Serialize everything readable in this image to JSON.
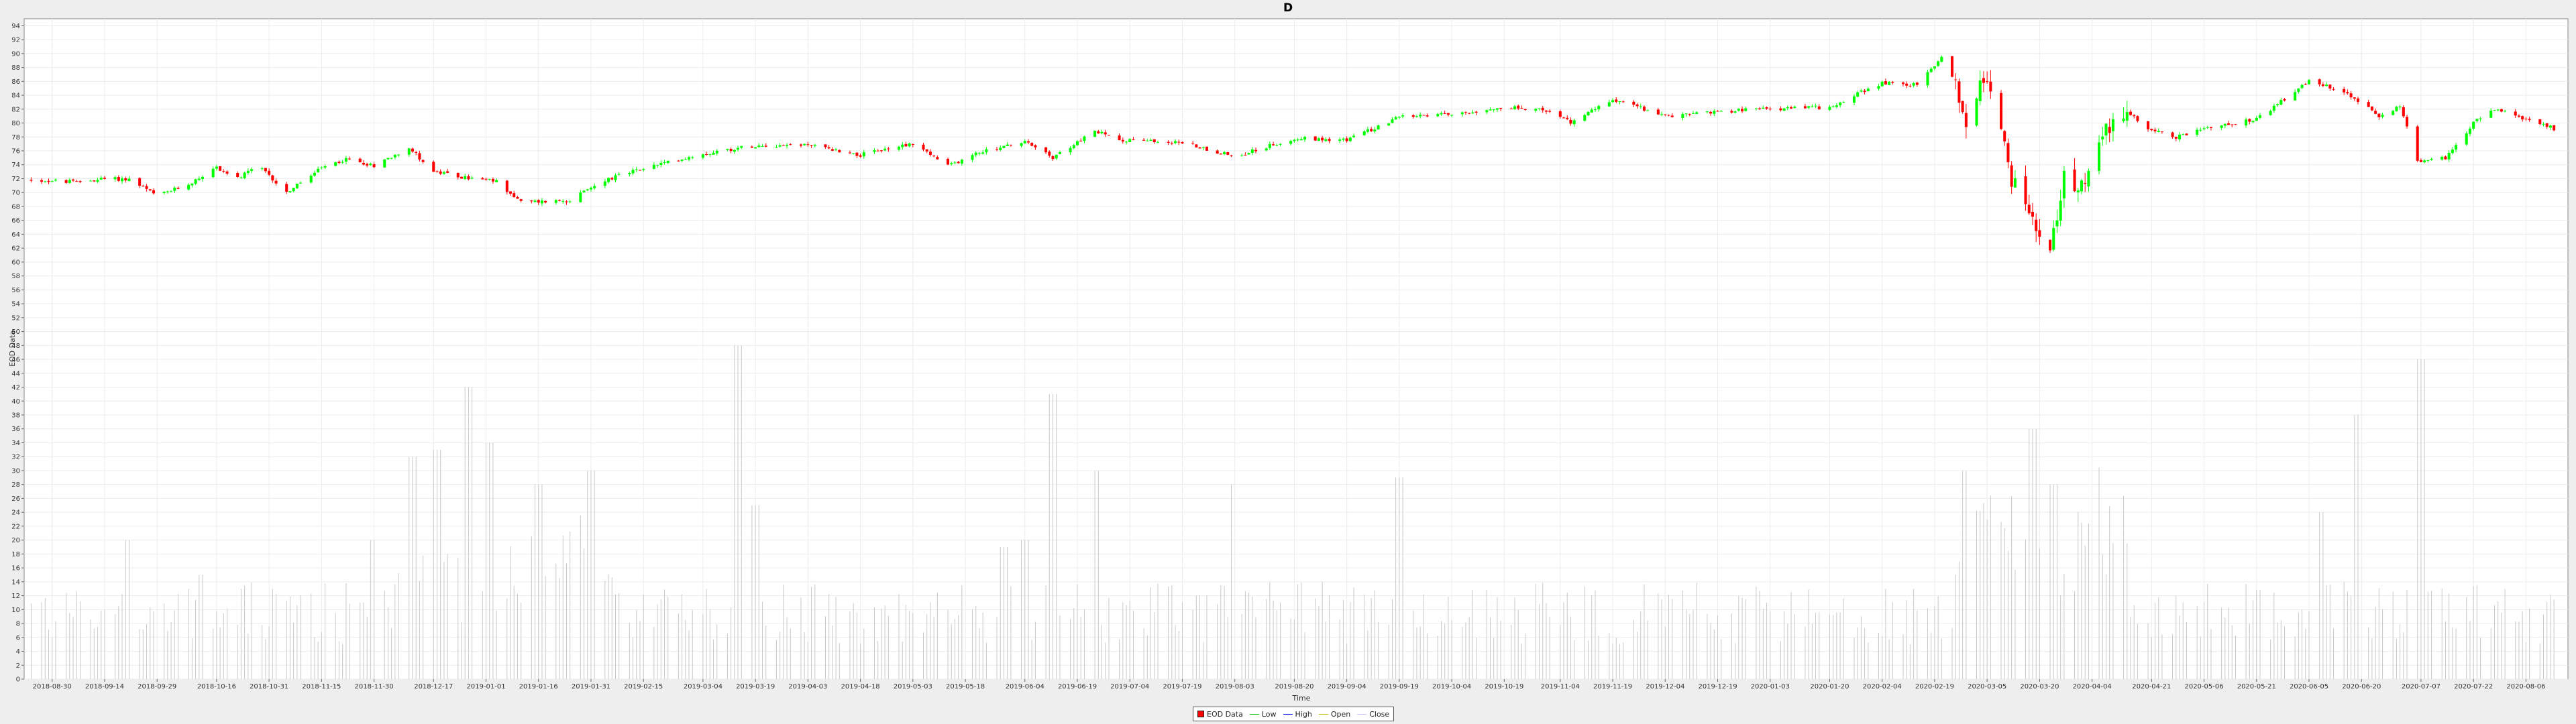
{
  "chart_data": {
    "type": "candlestick",
    "title": "D",
    "xlabel": "Time",
    "ylabel": "EOD Data",
    "ylim": [
      0,
      95
    ],
    "y_ticks": [
      0,
      2,
      4,
      6,
      8,
      10,
      12,
      14,
      16,
      18,
      20,
      22,
      24,
      26,
      28,
      30,
      32,
      34,
      36,
      38,
      40,
      42,
      44,
      46,
      48,
      50,
      52,
      54,
      56,
      58,
      60,
      62,
      64,
      66,
      68,
      70,
      72,
      74,
      76,
      78,
      80,
      82,
      84,
      86,
      88,
      90,
      92,
      94
    ],
    "x_ticks": [
      "2018-08-30",
      "2018-09-14",
      "2018-09-29",
      "2018-10-16",
      "2018-10-31",
      "2018-11-15",
      "2018-11-30",
      "2018-12-17",
      "2019-01-01",
      "2019-01-16",
      "2019-01-31",
      "2019-02-15",
      "2019-03-04",
      "2019-03-19",
      "2019-04-03",
      "2019-04-18",
      "2019-05-03",
      "2019-05-18",
      "2019-06-04",
      "2019-06-19",
      "2019-07-04",
      "2019-07-19",
      "2019-08-03",
      "2019-08-20",
      "2019-09-04",
      "2019-09-19",
      "2019-10-04",
      "2019-10-19",
      "2019-11-04",
      "2019-11-19",
      "2019-12-04",
      "2019-12-19",
      "2020-01-03",
      "2020-01-20",
      "2020-02-04",
      "2020-02-19",
      "2020-03-05",
      "2020-03-20",
      "2020-04-04",
      "2020-04-21",
      "2020-05-06",
      "2020-05-21",
      "2020-06-05",
      "2020-06-20",
      "2020-07-07",
      "2020-07-22",
      "2020-08-06"
    ],
    "close_anchors": [
      [
        "2018-08-24",
        71.8
      ],
      [
        "2018-09-06",
        71.5
      ],
      [
        "2018-09-14",
        72.0
      ],
      [
        "2018-09-21",
        71.9
      ],
      [
        "2018-09-29",
        69.5
      ],
      [
        "2018-10-08",
        71.2
      ],
      [
        "2018-10-16",
        73.6
      ],
      [
        "2018-10-22",
        72.0
      ],
      [
        "2018-10-28",
        73.8
      ],
      [
        "2018-11-05",
        70.0
      ],
      [
        "2018-11-15",
        73.5
      ],
      [
        "2018-11-22",
        74.8
      ],
      [
        "2018-11-30",
        73.9
      ],
      [
        "2018-12-10",
        76.5
      ],
      [
        "2018-12-17",
        73.0
      ],
      [
        "2018-12-25",
        72.2
      ],
      [
        "2019-01-04",
        71.6
      ],
      [
        "2019-01-11",
        68.6
      ],
      [
        "2019-01-25",
        68.9
      ],
      [
        "2019-02-04",
        71.8
      ],
      [
        "2019-02-15",
        73.5
      ],
      [
        "2019-03-04",
        75.6
      ],
      [
        "2019-03-19",
        76.8
      ],
      [
        "2019-04-03",
        76.9
      ],
      [
        "2019-04-18",
        75.4
      ],
      [
        "2019-05-03",
        77.1
      ],
      [
        "2019-05-13",
        73.8
      ],
      [
        "2019-05-22",
        75.8
      ],
      [
        "2019-06-04",
        77.3
      ],
      [
        "2019-06-12",
        75.0
      ],
      [
        "2019-06-24",
        78.8
      ],
      [
        "2019-07-02",
        77.6
      ],
      [
        "2019-07-19",
        77.2
      ],
      [
        "2019-08-03",
        75.2
      ],
      [
        "2019-08-20",
        77.8
      ],
      [
        "2019-09-04",
        77.6
      ],
      [
        "2019-09-19",
        80.8
      ],
      [
        "2019-10-04",
        81.3
      ],
      [
        "2019-10-19",
        82.3
      ],
      [
        "2019-11-01",
        81.8
      ],
      [
        "2019-11-07",
        80.0
      ],
      [
        "2019-11-19",
        83.5
      ],
      [
        "2019-12-04",
        81.0
      ],
      [
        "2019-12-19",
        81.7
      ],
      [
        "2020-01-03",
        82.0
      ],
      [
        "2020-01-20",
        82.3
      ],
      [
        "2020-02-04",
        85.8
      ],
      [
        "2020-02-14",
        85.5
      ],
      [
        "2020-02-21",
        89.5
      ],
      [
        "2020-02-25",
        86.0
      ],
      [
        "2020-02-28",
        79.5
      ],
      [
        "2020-03-04",
        86.8
      ],
      [
        "2020-03-09",
        79.0
      ],
      [
        "2020-03-12",
        72.0
      ],
      [
        "2020-03-16",
        68.0
      ],
      [
        "2020-03-19",
        64.0
      ],
      [
        "2020-03-23",
        61.0
      ],
      [
        "2020-03-27",
        72.0
      ],
      [
        "2020-04-02",
        70.5
      ],
      [
        "2020-04-08",
        79.0
      ],
      [
        "2020-04-14",
        81.5
      ],
      [
        "2020-04-21",
        79.0
      ],
      [
        "2020-04-28",
        78.0
      ],
      [
        "2020-05-06",
        79.2
      ],
      [
        "2020-05-21",
        80.5
      ],
      [
        "2020-06-05",
        86.0
      ],
      [
        "2020-06-15",
        84.5
      ],
      [
        "2020-06-25",
        81.0
      ],
      [
        "2020-07-01",
        82.5
      ],
      [
        "2020-07-06",
        74.5
      ],
      [
        "2020-07-14",
        75.0
      ],
      [
        "2020-07-22",
        80.0
      ],
      [
        "2020-07-28",
        82.0
      ],
      [
        "2020-08-06",
        80.5
      ],
      [
        "2020-08-14",
        79.2
      ]
    ],
    "volume_peaks": [
      [
        "2018-09-21",
        20
      ],
      [
        "2018-10-12",
        15
      ],
      [
        "2018-11-30",
        20
      ],
      [
        "2018-12-11",
        32
      ],
      [
        "2018-12-18",
        33
      ],
      [
        "2018-12-27",
        42
      ],
      [
        "2019-01-02",
        34
      ],
      [
        "2019-01-16",
        28
      ],
      [
        "2019-01-31",
        30
      ],
      [
        "2019-03-14",
        48
      ],
      [
        "2019-03-19",
        25
      ],
      [
        "2019-05-29",
        19
      ],
      [
        "2019-06-04",
        20
      ],
      [
        "2019-06-12",
        41
      ],
      [
        "2019-06-24",
        30
      ],
      [
        "2019-08-03",
        28
      ],
      [
        "2019-09-19",
        29
      ],
      [
        "2020-02-28",
        30
      ],
      [
        "2020-03-18",
        36
      ],
      [
        "2020-03-24",
        28
      ],
      [
        "2020-06-08",
        24
      ],
      [
        "2020-06-19",
        38
      ],
      [
        "2020-07-07",
        46
      ]
    ],
    "series": [
      {
        "name": "EOD Data",
        "color": "#ff0000"
      },
      {
        "name": "Low",
        "color": "#00c000"
      },
      {
        "name": "High",
        "color": "#0000ff"
      },
      {
        "name": "Open",
        "color": "#c0c000"
      },
      {
        "name": "Close",
        "color": "#c0c0ff"
      }
    ],
    "up_color": "#00ff00",
    "down_color": "#ff0000",
    "volume_color": "#c8c8c8",
    "grid": true,
    "legend_position": "bottom-center"
  }
}
